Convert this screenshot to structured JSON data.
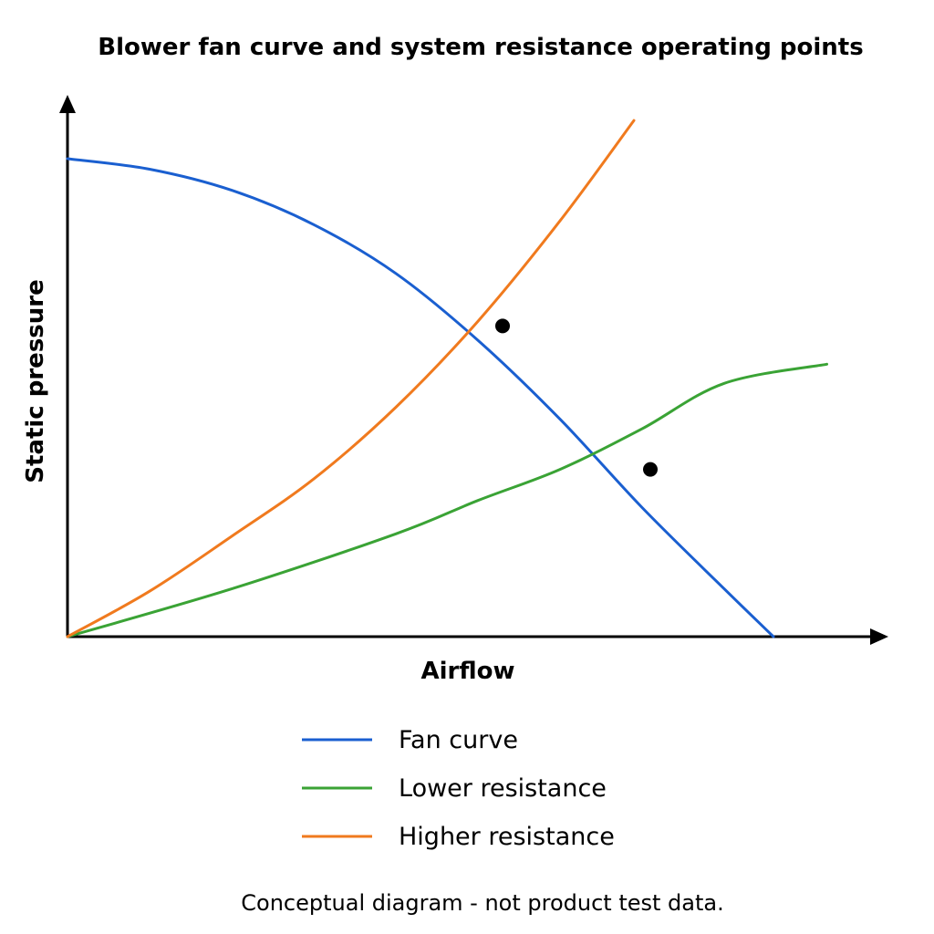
{
  "chart_data": {
    "type": "line",
    "title": "Blower fan curve and system resistance operating points",
    "xlabel": "Airflow",
    "ylabel": "Static pressure",
    "xlim": [
      0,
      10
    ],
    "ylim": [
      0,
      10
    ],
    "grid": false,
    "legend_position": "bottom",
    "series": [
      {
        "name": "Fan curve",
        "color": "#1a5fd0",
        "x": [
          0,
          1,
          2,
          3,
          4,
          5,
          6,
          7,
          8,
          8.6
        ],
        "y": [
          10,
          9.78,
          9.34,
          8.62,
          7.6,
          6.2,
          4.55,
          2.7,
          1.0,
          0
        ]
      },
      {
        "name": "Lower resistance",
        "color": "#3aa335",
        "x": [
          0,
          2,
          4,
          5,
          6,
          7,
          8,
          9.25
        ],
        "y": [
          0,
          1.0,
          2.15,
          2.85,
          3.5,
          4.35,
          5.3,
          5.7
        ]
      },
      {
        "name": "Higher resistance",
        "color": "#f07a1e",
        "x": [
          0,
          1,
          2,
          3,
          4,
          5,
          6,
          6.9
        ],
        "y": [
          0,
          0.95,
          2.1,
          3.3,
          4.8,
          6.6,
          8.7,
          10.8
        ]
      }
    ],
    "operating_points": [
      {
        "x": 5.3,
        "y": 6.5
      },
      {
        "x": 7.1,
        "y": 3.5
      }
    ],
    "note": "Conceptual diagram - not product test data."
  }
}
